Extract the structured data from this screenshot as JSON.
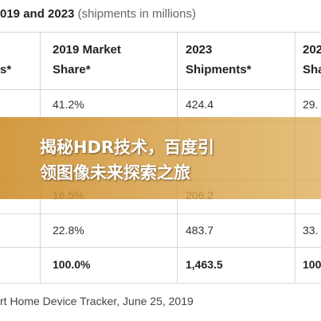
{
  "header": {
    "title_bold": "019 and 2023",
    "title_note": "(shipments in millions)"
  },
  "table": {
    "columns": [
      "s*",
      "2019 Market Share*",
      "2023 Shipments*",
      "202 Sha"
    ],
    "rows": [
      [
        "41.2%",
        "424.4",
        "29."
      ],
      [
        "16.5%",
        "206.2"
      ],
      [
        "22.8%",
        "483.7",
        "33."
      ],
      [
        "100.0%",
        "1,463.5",
        "100"
      ]
    ]
  },
  "footer": "rt Home Device Tracker, June 25, 2019",
  "banner": {
    "lines": [
      "揭秘HDR技术，百度引",
      "领图像未来探索之旅"
    ]
  }
}
